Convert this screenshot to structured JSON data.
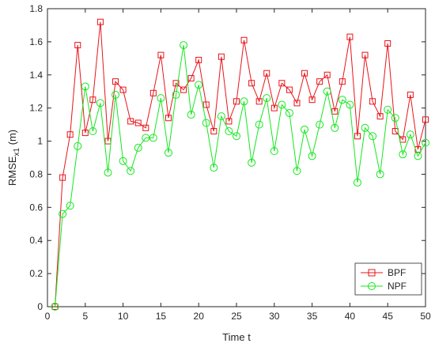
{
  "chart_data": {
    "type": "line",
    "xlabel": "Time t",
    "ylabel_main": "RMSE",
    "ylabel_sub": "x1",
    "ylabel_unit": " (m)",
    "xlim": [
      0,
      50
    ],
    "ylim": [
      0,
      1.8
    ],
    "xticks": [
      0,
      5,
      10,
      15,
      20,
      25,
      30,
      35,
      40,
      45,
      50
    ],
    "xtick_labels": [
      "0",
      "5",
      "10",
      "15",
      "20",
      "25",
      "30",
      "35",
      "40",
      "45",
      "50"
    ],
    "yticks": [
      0,
      0.2,
      0.4,
      0.6,
      0.8,
      1.0,
      1.2,
      1.4,
      1.6,
      1.8
    ],
    "ytick_labels": [
      "0",
      "0.2",
      "0.4",
      "0.6",
      "0.8",
      "1",
      "1.2",
      "1.4",
      "1.6",
      "1.8"
    ],
    "grid": false,
    "legend_position": "bottom-right",
    "x": [
      1,
      2,
      3,
      4,
      5,
      6,
      7,
      8,
      9,
      10,
      11,
      12,
      13,
      14,
      15,
      16,
      17,
      18,
      19,
      20,
      21,
      22,
      23,
      24,
      25,
      26,
      27,
      28,
      29,
      30,
      31,
      32,
      33,
      34,
      35,
      36,
      37,
      38,
      39,
      40,
      41,
      42,
      43,
      44,
      45,
      46,
      47,
      48,
      49,
      50
    ],
    "series": [
      {
        "name": "BPF",
        "color": "#e8141a",
        "marker": "square",
        "values": [
          0.0,
          0.78,
          1.04,
          1.58,
          1.05,
          1.25,
          1.72,
          1.0,
          1.36,
          1.31,
          1.12,
          1.11,
          1.08,
          1.29,
          1.52,
          1.14,
          1.35,
          1.31,
          1.38,
          1.49,
          1.22,
          1.06,
          1.51,
          1.12,
          1.24,
          1.61,
          1.35,
          1.24,
          1.41,
          1.2,
          1.35,
          1.31,
          1.23,
          1.41,
          1.25,
          1.36,
          1.4,
          1.18,
          1.36,
          1.63,
          1.03,
          1.52,
          1.24,
          1.15,
          1.59,
          1.06,
          1.01,
          1.28,
          0.95,
          1.13
        ]
      },
      {
        "name": "NPF",
        "color": "#14e81e",
        "marker": "circle",
        "values": [
          0.0,
          0.56,
          0.61,
          0.97,
          1.33,
          1.06,
          1.23,
          0.81,
          1.28,
          0.88,
          0.82,
          0.96,
          1.02,
          1.02,
          1.26,
          0.93,
          1.28,
          1.58,
          1.16,
          1.34,
          1.11,
          0.84,
          1.15,
          1.06,
          1.03,
          1.24,
          0.87,
          1.1,
          1.26,
          0.94,
          1.22,
          1.17,
          0.82,
          1.07,
          0.91,
          1.1,
          1.3,
          1.08,
          1.25,
          1.22,
          0.75,
          1.08,
          1.03,
          0.8,
          1.19,
          1.14,
          0.92,
          1.04,
          0.91,
          0.99
        ]
      }
    ]
  }
}
